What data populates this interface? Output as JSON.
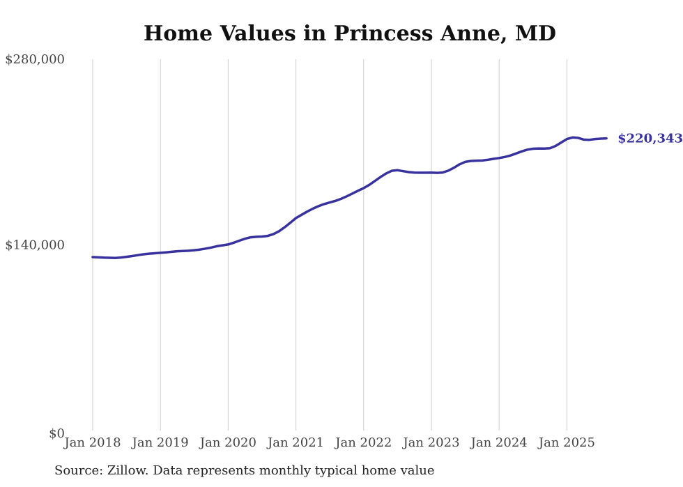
{
  "chart": {
    "background": "#ffffff",
    "colors": {
      "line": "#38329e",
      "end_label": "#38329e",
      "gridline": "#cccccc",
      "axis_text": "#444444",
      "title_text": "#111111",
      "source_text": "#222222"
    }
  },
  "chart_data": {
    "type": "line",
    "title": "Home Values in Princess Anne, MD",
    "source": "Source: Zillow. Data represents monthly typical home value",
    "xlabel": "",
    "ylabel": "",
    "ylim": [
      0,
      280000
    ],
    "grid": "vertical-only",
    "legend": "none",
    "x_start": "Jan 2018",
    "x_end": "Aug 2025",
    "x_frequency": "monthly",
    "x_tick_labels": [
      "Jan 2018",
      "Jan 2019",
      "Jan 2020",
      "Jan 2021",
      "Jan 2022",
      "Jan 2023",
      "Jan 2024",
      "Jan 2025"
    ],
    "y_ticks": [
      {
        "label": "$0",
        "value": 0
      },
      {
        "label": "$140,000",
        "value": 140000
      },
      {
        "label": "$280,000",
        "value": 280000
      }
    ],
    "last_value": 220343,
    "last_value_label": "$220,343",
    "series": [
      {
        "name": "Monthly typical home value",
        "color": "#38329e",
        "values": [
          130800,
          130600,
          130400,
          130300,
          130200,
          130500,
          131000,
          131600,
          132300,
          132900,
          133400,
          133700,
          134000,
          134400,
          134800,
          135200,
          135400,
          135600,
          136000,
          136500,
          137200,
          138000,
          139000,
          139700,
          140300,
          141700,
          143200,
          144700,
          145700,
          146100,
          146300,
          146800,
          148100,
          150300,
          153300,
          156700,
          160200,
          162700,
          165100,
          167300,
          169200,
          170800,
          172000,
          173200,
          174700,
          176600,
          178700,
          180800,
          182800,
          185300,
          188200,
          191200,
          193900,
          195900,
          196300,
          195600,
          194900,
          194500,
          194400,
          194400,
          194500,
          194300,
          194600,
          196000,
          198200,
          200800,
          202600,
          203300,
          203500,
          203600,
          204200,
          204900,
          205500,
          206300,
          207400,
          208900,
          210500,
          211800,
          212500,
          212700,
          212600,
          212900,
          214600,
          217200,
          219800,
          221000,
          220700,
          219400,
          219200,
          219800,
          220100,
          220343
        ]
      }
    ]
  }
}
